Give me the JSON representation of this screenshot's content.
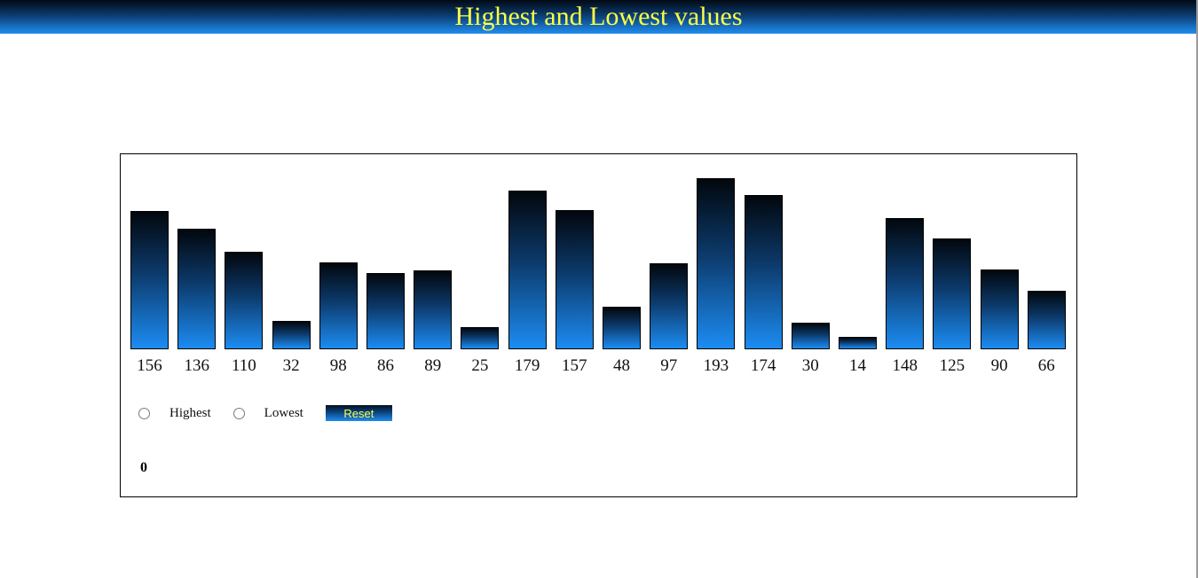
{
  "header": {
    "title": "Highest and Lowest values"
  },
  "chart_data": {
    "type": "bar",
    "values": [
      156,
      136,
      110,
      32,
      98,
      86,
      89,
      25,
      179,
      157,
      48,
      97,
      193,
      174,
      30,
      14,
      148,
      125,
      90,
      66
    ],
    "colors": {
      "bar_top": "#02070d",
      "bar_bottom": "#1c8cf2",
      "title_text": "#ffff44"
    }
  },
  "controls": {
    "highest_label": "Highest",
    "lowest_label": "Lowest",
    "reset_label": "Reset"
  },
  "result": {
    "value": "0"
  }
}
